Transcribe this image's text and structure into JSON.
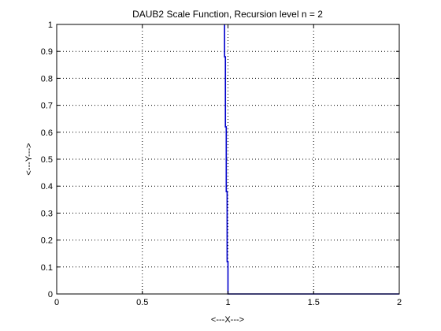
{
  "chart_data": {
    "type": "line",
    "title": "DAUB2 Scale Function, Recursion level n = 2",
    "xlabel": "<---X--->",
    "ylabel": "<---Y--->",
    "xlim": [
      0,
      2
    ],
    "ylim": [
      0,
      1
    ],
    "grid": true,
    "legend": "none",
    "x_ticks": [
      "0",
      "0.5",
      "1",
      "1.5",
      "2"
    ],
    "y_ticks": [
      "0",
      "0.1",
      "0.2",
      "0.3",
      "0.4",
      "0.5",
      "0.6",
      "0.7",
      "0.8",
      "0.9",
      "1"
    ],
    "series": [
      {
        "color": "#0000cc",
        "x": [
          0.98,
          0.98,
          0.985,
          0.985,
          0.99,
          0.99,
          0.995,
          0.995,
          1.0,
          1.0,
          2.0
        ],
        "y": [
          1.0,
          0.88,
          0.88,
          0.62,
          0.62,
          0.38,
          0.38,
          0.12,
          0.12,
          0.0,
          0.0
        ]
      }
    ]
  }
}
